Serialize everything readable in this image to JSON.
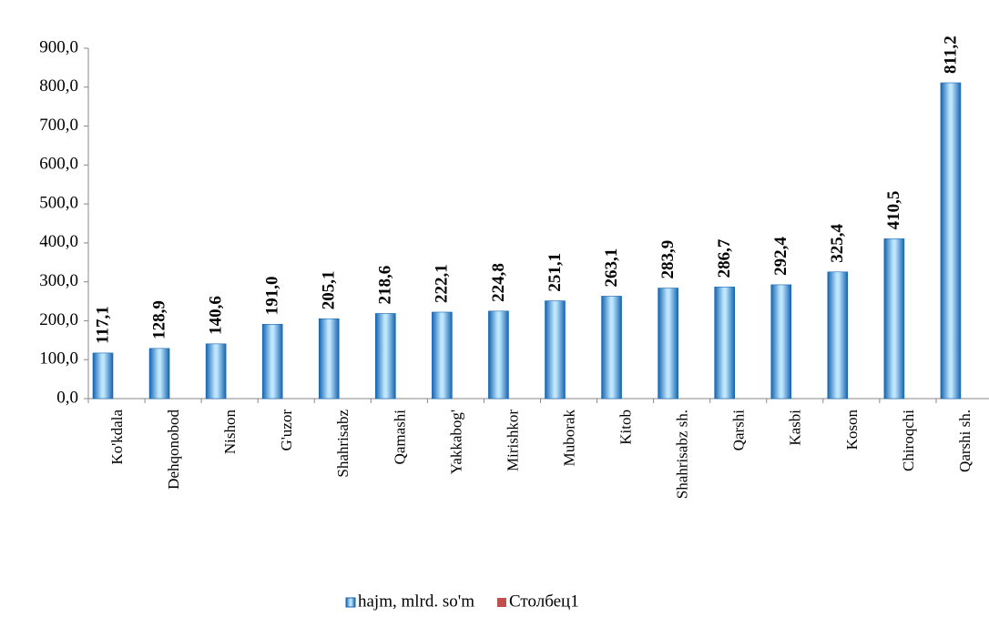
{
  "chart_data": {
    "type": "bar",
    "categories": [
      "Ko'kdala",
      "Dehqonobod",
      "Nishon",
      "G'uzor",
      "Shahrisabz",
      "Qamashi",
      "Yakkabog'",
      "Mirishkor",
      "Muborak",
      "Kitob",
      "Shahrisabz sh.",
      "Qarshi",
      "Kasbi",
      "Koson",
      "Chiroqchi",
      "Qarshi sh."
    ],
    "series": [
      {
        "name": "hajm, mlrd. so'm",
        "color": "#1e90d6",
        "values": [
          117.1,
          128.9,
          140.6,
          191.0,
          205.1,
          218.6,
          222.1,
          224.8,
          251.1,
          263.1,
          283.9,
          286.7,
          292.4,
          325.4,
          410.5,
          811.2
        ],
        "value_labels": [
          "117,1",
          "128,9",
          "140,6",
          "191,0",
          "205,1",
          "218,6",
          "222,1",
          "224,8",
          "251,1",
          "263,1",
          "283,9",
          "286,7",
          "292,4",
          "325,4",
          "410,5",
          "811,2"
        ]
      },
      {
        "name": "Столбец1",
        "color": "#c0504d",
        "values": [
          null,
          null,
          null,
          null,
          null,
          null,
          null,
          null,
          null,
          null,
          null,
          null,
          null,
          null,
          null,
          null
        ]
      }
    ],
    "ylim": [
      0,
      900
    ],
    "yticks": [
      {
        "value": 0,
        "label": "0,0"
      },
      {
        "value": 100,
        "label": "100,0"
      },
      {
        "value": 200,
        "label": "200,0"
      },
      {
        "value": 300,
        "label": "300,0"
      },
      {
        "value": 400,
        "label": "400,0"
      },
      {
        "value": 500,
        "label": "500,0"
      },
      {
        "value": 600,
        "label": "600,0"
      },
      {
        "value": 700,
        "label": "700,0"
      },
      {
        "value": 800,
        "label": "800,0"
      },
      {
        "value": 900,
        "label": "900,0"
      }
    ],
    "grid": false,
    "legend": "bottom"
  }
}
